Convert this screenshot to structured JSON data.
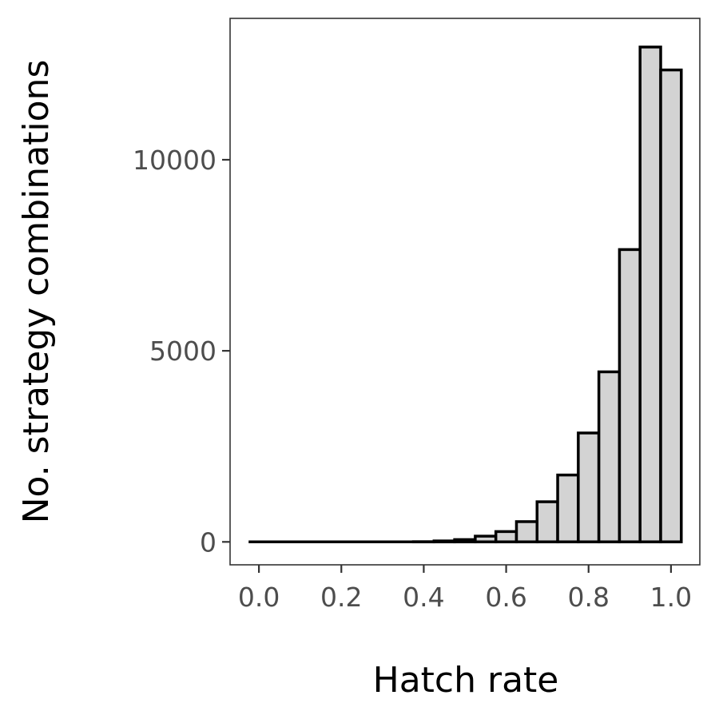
{
  "chart_data": {
    "type": "bar",
    "subtype": "histogram",
    "title": "",
    "xlabel": "Hatch rate",
    "ylabel": "No. strategy combinations",
    "xlim": [
      -0.07,
      1.07
    ],
    "ylim": [
      -600,
      13700
    ],
    "x_ticks": [
      0.0,
      0.2,
      0.4,
      0.6,
      0.8,
      1.0
    ],
    "x_tick_labels": [
      "0.0",
      "0.2",
      "0.4",
      "0.6",
      "0.8",
      "1.0"
    ],
    "y_ticks": [
      0,
      5000,
      10000
    ],
    "y_tick_labels": [
      "0",
      "5000",
      "10000"
    ],
    "bin_width": 0.05,
    "bins": [
      {
        "x": 0.0,
        "count": 0
      },
      {
        "x": 0.05,
        "count": 0
      },
      {
        "x": 0.1,
        "count": 0
      },
      {
        "x": 0.15,
        "count": 0
      },
      {
        "x": 0.2,
        "count": 0
      },
      {
        "x": 0.25,
        "count": 0
      },
      {
        "x": 0.3,
        "count": 0
      },
      {
        "x": 0.35,
        "count": 0
      },
      {
        "x": 0.4,
        "count": 5
      },
      {
        "x": 0.45,
        "count": 25
      },
      {
        "x": 0.5,
        "count": 60
      },
      {
        "x": 0.55,
        "count": 150
      },
      {
        "x": 0.6,
        "count": 270
      },
      {
        "x": 0.65,
        "count": 530
      },
      {
        "x": 0.7,
        "count": 1050
      },
      {
        "x": 0.75,
        "count": 1750
      },
      {
        "x": 0.8,
        "count": 2850
      },
      {
        "x": 0.85,
        "count": 4450
      },
      {
        "x": 0.9,
        "count": 7650
      },
      {
        "x": 0.95,
        "count": 12950
      },
      {
        "x": 1.0,
        "count": 12350
      }
    ],
    "grid": false,
    "bar_fill": "#d3d3d3",
    "bar_stroke": "#000000",
    "panel_border": "#333333",
    "tick_label_color": "#4d4d4d"
  }
}
